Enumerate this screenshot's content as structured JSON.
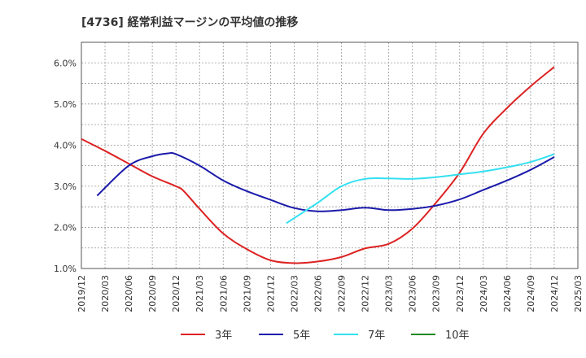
{
  "chart_data": {
    "type": "line",
    "title": "[4736]  経常利益マージンの平均値の推移",
    "xlabel": "",
    "ylabel": "",
    "y_format": "percent_1dp",
    "ylim": [
      1.0,
      6.5
    ],
    "y_ticks": [
      1.0,
      2.0,
      3.0,
      4.0,
      5.0,
      6.0
    ],
    "x_start": "2019-12",
    "x_end": "2025-03",
    "x_tick_labels": [
      "2019/12",
      "2020/03",
      "2020/06",
      "2020/09",
      "2020/12",
      "2021/03",
      "2021/06",
      "2021/09",
      "2021/12",
      "2022/03",
      "2022/06",
      "2022/09",
      "2022/12",
      "2023/03",
      "2023/06",
      "2023/09",
      "2023/12",
      "2024/03",
      "2024/06",
      "2024/09",
      "2024/12",
      "2025/03"
    ],
    "grid": true,
    "legend_position": "bottom",
    "series": [
      {
        "name": "3年",
        "color": "#dd2222",
        "x": [
          "2019-12",
          "2020-03",
          "2020-06",
          "2020-09",
          "2020-12",
          "2021-01",
          "2021-03",
          "2021-06",
          "2021-09",
          "2021-12",
          "2022-03",
          "2022-06",
          "2022-09",
          "2022-12",
          "2023-03",
          "2023-06",
          "2023-09",
          "2023-12",
          "2024-03",
          "2024-06",
          "2024-09",
          "2024-12"
        ],
        "values": [
          4.15,
          3.86,
          3.55,
          3.24,
          3.0,
          2.88,
          2.45,
          1.85,
          1.47,
          1.2,
          1.13,
          1.17,
          1.28,
          1.49,
          1.6,
          1.97,
          2.6,
          3.33,
          4.28,
          4.9,
          5.43,
          5.9
        ]
      },
      {
        "name": "5年",
        "color": "#1a1aaa",
        "x": [
          "2020-02",
          "2020-06",
          "2020-09",
          "2020-11",
          "2020-12",
          "2021-03",
          "2021-06",
          "2021-09",
          "2021-12",
          "2022-03",
          "2022-06",
          "2022-09",
          "2022-12",
          "2023-03",
          "2023-06",
          "2023-09",
          "2023-12",
          "2024-03",
          "2024-06",
          "2024-09",
          "2024-12"
        ],
        "values": [
          2.77,
          3.5,
          3.73,
          3.8,
          3.78,
          3.5,
          3.14,
          2.88,
          2.67,
          2.47,
          2.39,
          2.42,
          2.48,
          2.42,
          2.45,
          2.53,
          2.68,
          2.91,
          3.14,
          3.4,
          3.71
        ]
      },
      {
        "name": "7年",
        "color": "#33e0f0",
        "x": [
          "2022-02",
          "2022-06",
          "2022-09",
          "2022-12",
          "2023-03",
          "2023-06",
          "2023-09",
          "2023-12",
          "2024-03",
          "2024-06",
          "2024-09",
          "2024-12"
        ],
        "values": [
          2.1,
          2.6,
          3.0,
          3.18,
          3.19,
          3.18,
          3.22,
          3.29,
          3.36,
          3.46,
          3.59,
          3.78
        ]
      },
      {
        "name": "10年",
        "color": "#228822",
        "x": [],
        "values": []
      }
    ]
  }
}
